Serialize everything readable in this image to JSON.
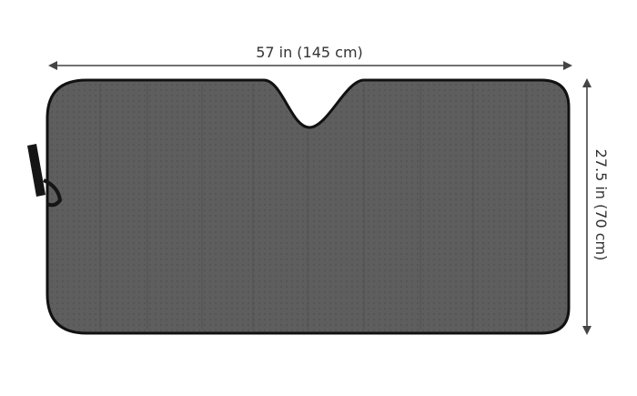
{
  "dimensions": {
    "width_label": "57 in (145 cm)",
    "height_label": "27.5 in (70 cm)"
  },
  "colors": {
    "shade_fill": "#5e5e5e",
    "shade_edge": "#111111",
    "arrow": "#444444",
    "text": "#333333",
    "background": "#ffffff"
  },
  "icons": {
    "strap": "elastic-strap-icon"
  }
}
